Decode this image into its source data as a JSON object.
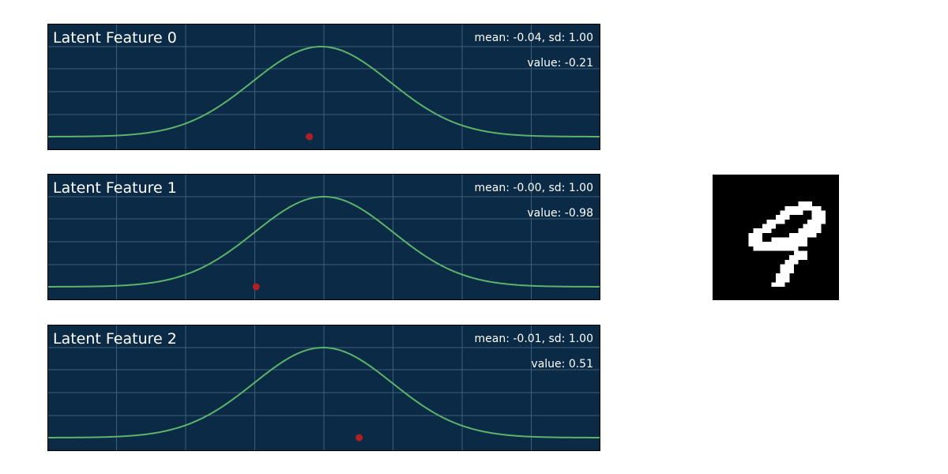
{
  "chart_data": [
    {
      "type": "line",
      "title": "Latent Feature 0",
      "stats_text": "mean: -0.04, sd: 1.00",
      "value_text": "value: -0.21",
      "mean": -0.04,
      "sd": 1.0,
      "value": -0.21,
      "xlim": [
        -4,
        4
      ],
      "grid": true,
      "colors": {
        "background": "#0b2a45",
        "grid": "#3d5f7d",
        "curve": "#5cb36a",
        "marker": "#b01f24"
      }
    },
    {
      "type": "line",
      "title": "Latent Feature 1",
      "stats_text": "mean: -0.00, sd: 1.00",
      "value_text": "value: -0.98",
      "mean": -0.0,
      "sd": 1.0,
      "value": -0.98,
      "xlim": [
        -4,
        4
      ],
      "grid": true,
      "colors": {
        "background": "#0b2a45",
        "grid": "#3d5f7d",
        "curve": "#5cb36a",
        "marker": "#b01f24"
      }
    },
    {
      "type": "line",
      "title": "Latent Feature 2",
      "stats_text": "mean: -0.01, sd: 1.00",
      "value_text": "value: 0.51",
      "mean": -0.01,
      "sd": 1.0,
      "value": 0.51,
      "xlim": [
        -4,
        4
      ],
      "grid": true,
      "colors": {
        "background": "#0b2a45",
        "grid": "#3d5f7d",
        "curve": "#5cb36a",
        "marker": "#b01f24"
      }
    }
  ],
  "digit_image": {
    "description_icon": "handwritten-digit-9-image",
    "grid_size": [
      28,
      28
    ],
    "pixels": [
      "............................",
      "............................",
      "............................",
      "............................",
      "............................",
      "............................",
      "...................###......",
      "................########....",
      "...............#####..###...",
      "..............###.....###...",
      "............####.....####...",
      "...........###......####....",
      ".........####......#####....",
      "........###......######.....",
      "........###..########.......",
      "........#############.......",
      ".........##########.........",
      "..................###.......",
      ".................####.......",
      "................###.........",
      "...............###..........",
      "...............###..........",
      "..............###...........",
      "..............###...........",
      ".............###............",
      "............................",
      "............................",
      "............................"
    ]
  }
}
